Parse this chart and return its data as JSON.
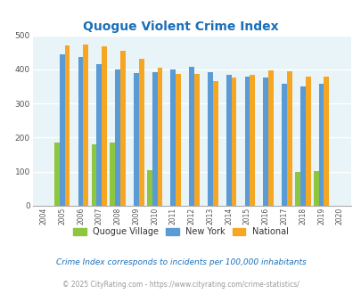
{
  "title": "Quogue Violent Crime Index",
  "title_color": "#1a6fba",
  "years": [
    2004,
    2005,
    2006,
    2007,
    2008,
    2009,
    2010,
    2011,
    2012,
    2013,
    2014,
    2015,
    2016,
    2017,
    2018,
    2019,
    2020
  ],
  "quogue": [
    0,
    185,
    0,
    180,
    185,
    0,
    105,
    0,
    0,
    0,
    0,
    0,
    0,
    0,
    100,
    103,
    0
  ],
  "new_york": [
    0,
    445,
    435,
    415,
    400,
    388,
    393,
    400,
    407,
    392,
    384,
    380,
    377,
    357,
    350,
    357,
    0
  ],
  "national": [
    0,
    470,
    473,
    467,
    455,
    432,
    405,
    387,
    387,
    367,
    377,
    383,
    398,
    394,
    379,
    379,
    0
  ],
  "quogue_color": "#8dc63f",
  "ny_color": "#5b9bd5",
  "national_color": "#f5a623",
  "plot_bg": "#e8f4f8",
  "ylim": [
    0,
    500
  ],
  "yticks": [
    0,
    100,
    200,
    300,
    400,
    500
  ],
  "legend_labels": [
    "Quogue Village",
    "New York",
    "National"
  ],
  "footnote1": "Crime Index corresponds to incidents per 100,000 inhabitants",
  "footnote2": "© 2025 CityRating.com - https://www.cityrating.com/crime-statistics/",
  "footnote1_color": "#1a6fba",
  "footnote2_color": "#999999"
}
